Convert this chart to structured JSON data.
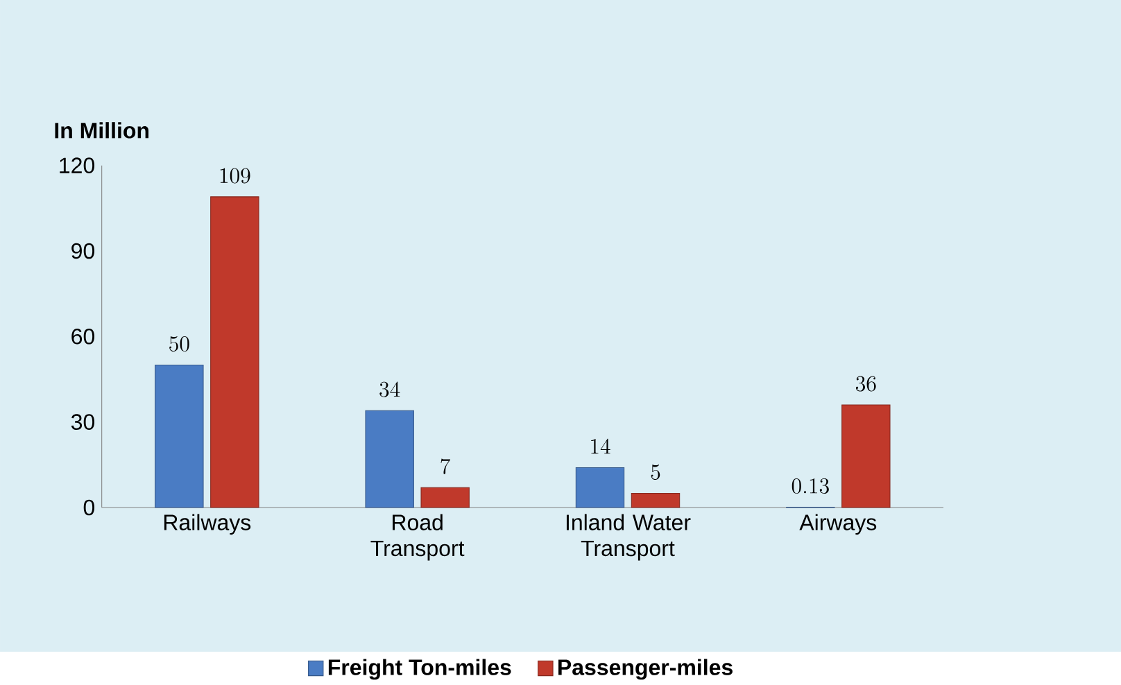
{
  "chart_data": {
    "type": "bar",
    "ylabel": "In Million",
    "categories": [
      "Railways",
      "Road Transport",
      "Inland Water Transport",
      "Airways"
    ],
    "series": [
      {
        "name": "Freight Ton-miles",
        "color": "#4a7cc4",
        "values": [
          50,
          34,
          14,
          0.13
        ]
      },
      {
        "name": "Passenger-miles",
        "color": "#c0392b",
        "values": [
          109,
          7,
          5,
          36
        ]
      }
    ],
    "ylim": [
      0,
      120
    ],
    "yticks": [
      0,
      30,
      60,
      90,
      120
    ],
    "data_labels": true,
    "grid": false,
    "legend": "bottom"
  }
}
